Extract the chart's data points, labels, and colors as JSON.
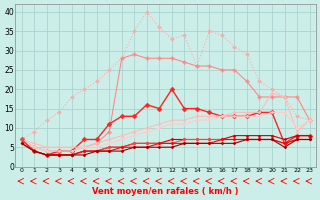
{
  "xlabel": "Vent moyen/en rafales ( km/h )",
  "bg_color": "#cceee8",
  "grid_color": "#aad4ce",
  "x_ticks": [
    0,
    1,
    2,
    3,
    4,
    5,
    6,
    7,
    8,
    9,
    10,
    11,
    12,
    13,
    14,
    15,
    16,
    17,
    18,
    19,
    20,
    21,
    22,
    23
  ],
  "ylim": [
    0,
    42
  ],
  "yticks": [
    0,
    5,
    10,
    15,
    20,
    25,
    30,
    35,
    40
  ],
  "series": [
    {
      "color": "#ffaaaa",
      "lw": 0.8,
      "ls": "dotted",
      "marker": "D",
      "ms": 2.0,
      "values": [
        7,
        9,
        12,
        14,
        18,
        20,
        22,
        25,
        28,
        35,
        40,
        36,
        33,
        34,
        26,
        35,
        34,
        31,
        29,
        22,
        20,
        18,
        13,
        12
      ]
    },
    {
      "color": "#ff8888",
      "lw": 0.8,
      "ls": "solid",
      "marker": "P",
      "ms": 2.5,
      "values": [
        7,
        5,
        4,
        4,
        4,
        5,
        6,
        9,
        28,
        29,
        28,
        28,
        28,
        27,
        26,
        26,
        25,
        25,
        22,
        18,
        18,
        18,
        18,
        12
      ]
    },
    {
      "color": "#ff2222",
      "lw": 1.0,
      "ls": "solid",
      "marker": "D",
      "ms": 2.5,
      "values": [
        7,
        4,
        3,
        4,
        4,
        7,
        7,
        11,
        13,
        13,
        16,
        15,
        20,
        15,
        15,
        14,
        13,
        13,
        13,
        14,
        14,
        6,
        8,
        8
      ]
    },
    {
      "color": "#ffbbbb",
      "lw": 0.8,
      "ls": "solid",
      "marker": "D",
      "ms": 1.5,
      "values": [
        7,
        6,
        5,
        5,
        5,
        5,
        6,
        7,
        8,
        9,
        10,
        11,
        12,
        12,
        13,
        13,
        13,
        14,
        14,
        14,
        19,
        18,
        9,
        12
      ]
    },
    {
      "color": "#ffcccc",
      "lw": 0.8,
      "ls": "solid",
      "marker": "D",
      "ms": 1.5,
      "values": [
        7,
        5,
        4,
        4,
        4,
        5,
        5,
        6,
        7,
        8,
        9,
        10,
        11,
        11,
        12,
        12,
        13,
        13,
        13,
        13,
        14,
        14,
        10,
        12
      ]
    },
    {
      "color": "#cc0000",
      "lw": 0.8,
      "ls": "solid",
      "marker": "D",
      "ms": 1.5,
      "values": [
        7,
        4,
        3,
        3,
        3,
        4,
        4,
        5,
        5,
        6,
        6,
        6,
        7,
        7,
        7,
        7,
        7,
        8,
        8,
        8,
        8,
        7,
        8,
        8
      ]
    },
    {
      "color": "#ff4444",
      "lw": 0.8,
      "ls": "solid",
      "marker": "D",
      "ms": 1.5,
      "values": [
        7,
        4,
        3,
        3,
        3,
        4,
        4,
        5,
        5,
        6,
        6,
        6,
        6,
        7,
        7,
        7,
        7,
        7,
        7,
        7,
        7,
        6,
        7,
        7
      ]
    },
    {
      "color": "#ff0000",
      "lw": 0.8,
      "ls": "solid",
      "marker": "D",
      "ms": 1.5,
      "values": [
        6,
        4,
        3,
        3,
        3,
        4,
        4,
        4,
        5,
        5,
        5,
        6,
        6,
        6,
        6,
        6,
        7,
        7,
        7,
        7,
        7,
        6,
        7,
        7
      ]
    },
    {
      "color": "#990000",
      "lw": 0.8,
      "ls": "solid",
      "marker": "D",
      "ms": 1.5,
      "values": [
        6,
        4,
        3,
        3,
        3,
        3,
        4,
        4,
        4,
        5,
        5,
        5,
        5,
        6,
        6,
        6,
        6,
        6,
        7,
        7,
        7,
        5,
        7,
        7
      ]
    }
  ]
}
